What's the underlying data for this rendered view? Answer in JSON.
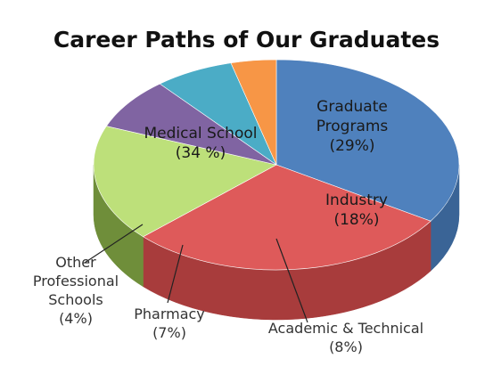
{
  "chart_data": {
    "type": "pie",
    "title": "Career Paths of Our Graduates",
    "slices": [
      {
        "name": "Medical School",
        "value": 34,
        "label": "(34 %)",
        "color": "#4F81BD",
        "side": "#3A6496",
        "text_color": "#1a1a1a"
      },
      {
        "name": "Graduate Programs",
        "name_lines": [
          "Graduate",
          "Programs"
        ],
        "value": 29,
        "label": "(29%)",
        "color": "#DE5A5A",
        "side": "#A83C3C",
        "text_color": "#1a1a1a"
      },
      {
        "name": "Industry",
        "value": 18,
        "label": "(18%)",
        "color": "#BDE07A",
        "side": "#6F8E3A",
        "text_color": "#1a1a1a"
      },
      {
        "name": "Academic & Technical",
        "value": 8,
        "label": "(8%)",
        "color": "#8064A2",
        "side": "#5A467A",
        "text_color": "#333333"
      },
      {
        "name": "Pharmacy",
        "value": 7,
        "label": "(7%)",
        "color": "#4BACC6",
        "side": "#2E7E94",
        "text_color": "#333333"
      },
      {
        "name": "Other Professional Schools",
        "name_lines": [
          "Other",
          "Professional",
          "Schools"
        ],
        "value": 4,
        "label": "(4%)",
        "color": "#F79646",
        "side": "#C06A1E",
        "text_color": "#333333"
      }
    ],
    "legend": "none",
    "labels": "inside-and-callout"
  }
}
